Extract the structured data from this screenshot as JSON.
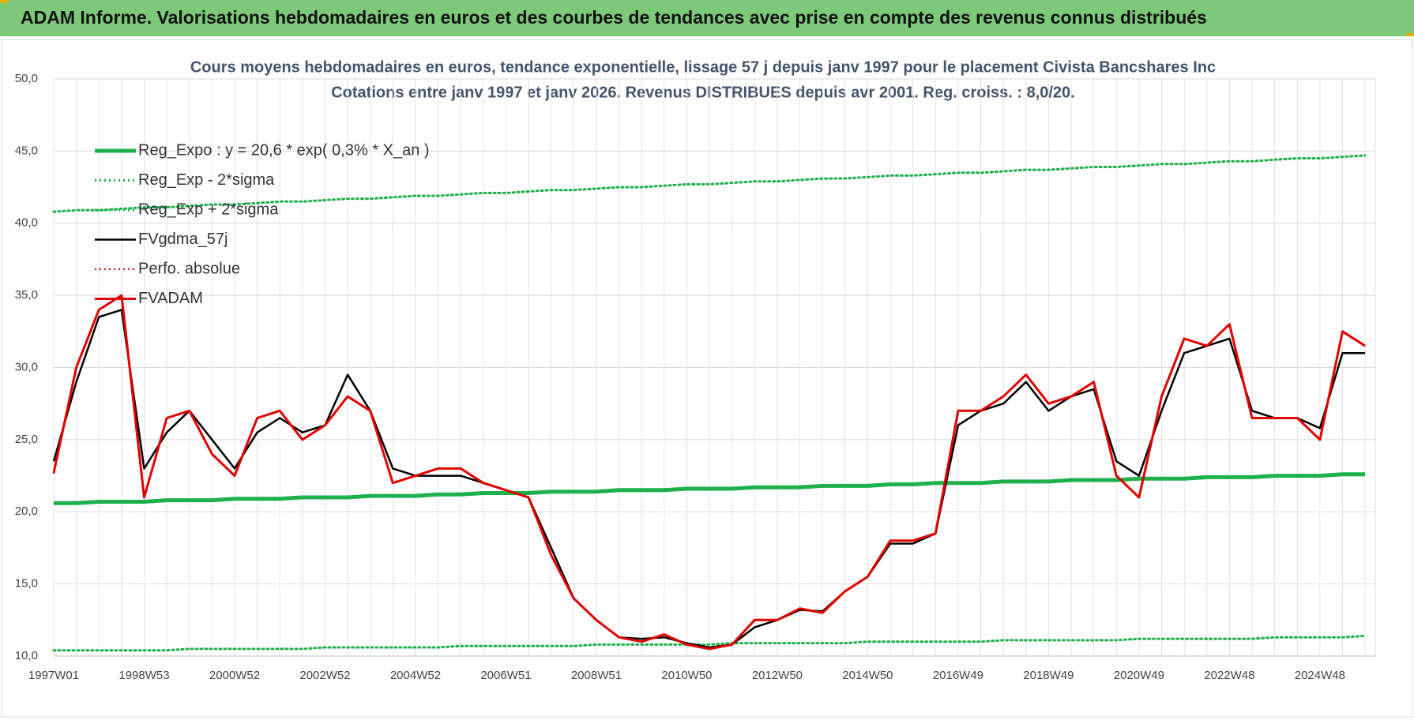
{
  "header": {
    "title": "ADAM Informe. Valorisations hebdomadaires en euros et des courbes de tendances avec prise en compte des revenus connus distribués"
  },
  "chart_data": {
    "type": "line",
    "title": "Cours moyens hebdomadaires en euros, tendance exponentielle, lissage 57 j depuis janv 1997  pour le placement Civista Bancshares Inc",
    "subtitle": "Cotations entre janv 1997 et janv 2026. Revenus DISTRIBUES depuis avr 2001. Reg. croiss. : 8,0/20.",
    "categories": [
      "1997W01",
      null,
      null,
      null,
      "1998W53",
      null,
      null,
      null,
      "2000W52",
      null,
      null,
      null,
      "2002W52",
      null,
      null,
      null,
      "2004W52",
      null,
      null,
      null,
      "2006W51",
      null,
      null,
      null,
      "2008W51",
      null,
      null,
      null,
      "2010W50",
      null,
      null,
      null,
      "2012W50",
      null,
      null,
      null,
      "2014W50",
      null,
      null,
      null,
      "2016W49",
      null,
      null,
      null,
      "2018W49",
      null,
      null,
      null,
      "2020W49",
      null,
      null,
      null,
      "2022W48",
      null,
      null,
      null,
      "2024W48",
      null,
      null
    ],
    "ylim": [
      10,
      50
    ],
    "yticks": [
      {
        "value": 10,
        "label": "10,0"
      },
      {
        "value": 15,
        "label": "15,0"
      },
      {
        "value": 20,
        "label": "20,0"
      },
      {
        "value": 25,
        "label": "25,0"
      },
      {
        "value": 30,
        "label": "30,0"
      },
      {
        "value": 35,
        "label": "35,0"
      },
      {
        "value": 40,
        "label": "40,0"
      },
      {
        "value": 45,
        "label": "45,0"
      },
      {
        "value": 50,
        "label": "50,0"
      }
    ],
    "grid": true,
    "legend": "upper left",
    "series": [
      {
        "name": "Reg_Expo : y = 20,6 * exp( 0,3% *  X_an )",
        "color": "#1db04b",
        "dash": "solid",
        "width": 5,
        "values": [
          20.6,
          20.6,
          20.7,
          20.7,
          20.7,
          20.8,
          20.8,
          20.8,
          20.9,
          20.9,
          20.9,
          21.0,
          21.0,
          21.0,
          21.1,
          21.1,
          21.1,
          21.2,
          21.2,
          21.3,
          21.3,
          21.3,
          21.4,
          21.4,
          21.4,
          21.5,
          21.5,
          21.5,
          21.6,
          21.6,
          21.6,
          21.7,
          21.7,
          21.7,
          21.8,
          21.8,
          21.8,
          21.9,
          21.9,
          22.0,
          22.0,
          22.0,
          22.1,
          22.1,
          22.1,
          22.2,
          22.2,
          22.2,
          22.3,
          22.3,
          22.3,
          22.4,
          22.4,
          22.4,
          22.5,
          22.5,
          22.5,
          22.6,
          22.6
        ]
      },
      {
        "name": "Reg_Exp - 2*sigma",
        "color": "#1db04b",
        "dash": "dotted",
        "width": 3,
        "values": [
          10.4,
          10.4,
          10.4,
          10.4,
          10.4,
          10.4,
          10.5,
          10.5,
          10.5,
          10.5,
          10.5,
          10.5,
          10.6,
          10.6,
          10.6,
          10.6,
          10.6,
          10.6,
          10.7,
          10.7,
          10.7,
          10.7,
          10.7,
          10.7,
          10.8,
          10.8,
          10.8,
          10.8,
          10.8,
          10.8,
          10.9,
          10.9,
          10.9,
          10.9,
          10.9,
          10.9,
          11.0,
          11.0,
          11.0,
          11.0,
          11.0,
          11.0,
          11.1,
          11.1,
          11.1,
          11.1,
          11.1,
          11.1,
          11.2,
          11.2,
          11.2,
          11.2,
          11.2,
          11.2,
          11.3,
          11.3,
          11.3,
          11.3,
          11.4
        ]
      },
      {
        "name": "Reg_Exp + 2*sigma",
        "color": "#1db04b",
        "dash": "dotted",
        "width": 3,
        "values": [
          40.8,
          40.9,
          40.9,
          41.0,
          41.1,
          41.1,
          41.2,
          41.3,
          41.3,
          41.4,
          41.5,
          41.5,
          41.6,
          41.7,
          41.7,
          41.8,
          41.9,
          41.9,
          42.0,
          42.1,
          42.1,
          42.2,
          42.3,
          42.3,
          42.4,
          42.5,
          42.5,
          42.6,
          42.7,
          42.7,
          42.8,
          42.9,
          42.9,
          43.0,
          43.1,
          43.1,
          43.2,
          43.3,
          43.3,
          43.4,
          43.5,
          43.5,
          43.6,
          43.7,
          43.7,
          43.8,
          43.9,
          43.9,
          44.0,
          44.1,
          44.1,
          44.2,
          44.3,
          44.3,
          44.4,
          44.5,
          44.5,
          44.6,
          44.7
        ]
      },
      {
        "name": "FVgdma_57j",
        "color": "#000000",
        "dash": "solid",
        "width": 2.5,
        "values": [
          23.5,
          29,
          33.5,
          34,
          23,
          25.5,
          27,
          25,
          23,
          25.5,
          26.5,
          25.5,
          26,
          29.5,
          27,
          23,
          22.5,
          22.5,
          22.5,
          22,
          21.5,
          21,
          17.5,
          14,
          12.5,
          11.3,
          11.2,
          11.3,
          10.9,
          10.6,
          10.8,
          12,
          12.5,
          13.2,
          13.1,
          14.5,
          15.5,
          17.8,
          17.8,
          18.5,
          26,
          27,
          27.5,
          29,
          27,
          28,
          28.5,
          23.5,
          22.5,
          27,
          31,
          31.5,
          32,
          27,
          26.5,
          26.5,
          25.8,
          31,
          31
        ]
      },
      {
        "name": "Perfo. absolue",
        "color": "#e00000",
        "dash": "dotted",
        "width": 2,
        "values": [
          22.7,
          30,
          34,
          35,
          21,
          26.5,
          27,
          24,
          22.5,
          26.5,
          27,
          25,
          26,
          28,
          27,
          22,
          22.5,
          23,
          23,
          22,
          21.5,
          21,
          17,
          14,
          12.5,
          11.3,
          11,
          11.5,
          10.8,
          10.5,
          10.8,
          12.5,
          12.5,
          13.3,
          13,
          14.5,
          15.5,
          18,
          18,
          18.5,
          27,
          27,
          28,
          29.5,
          27.5,
          28,
          29,
          22.5,
          21,
          28,
          32,
          31.5,
          33,
          26.5,
          26.5,
          26.5,
          25,
          32.5,
          31.5
        ]
      },
      {
        "name": "FVADAM",
        "color": "#e00000",
        "dash": "solid",
        "width": 3,
        "values": [
          22.7,
          30,
          34,
          35,
          21,
          26.5,
          27,
          24,
          22.5,
          26.5,
          27,
          25,
          26,
          28,
          27,
          22,
          22.5,
          23,
          23,
          22,
          21.5,
          21,
          17,
          14,
          12.5,
          11.3,
          11,
          11.5,
          10.8,
          10.5,
          10.8,
          12.5,
          12.5,
          13.3,
          13,
          14.5,
          15.5,
          18,
          18,
          18.5,
          27,
          27,
          28,
          29.5,
          27.5,
          28,
          29,
          22.5,
          21,
          28,
          32,
          31.5,
          33,
          26.5,
          26.5,
          26.5,
          25,
          32.5,
          31.5
        ]
      }
    ]
  }
}
